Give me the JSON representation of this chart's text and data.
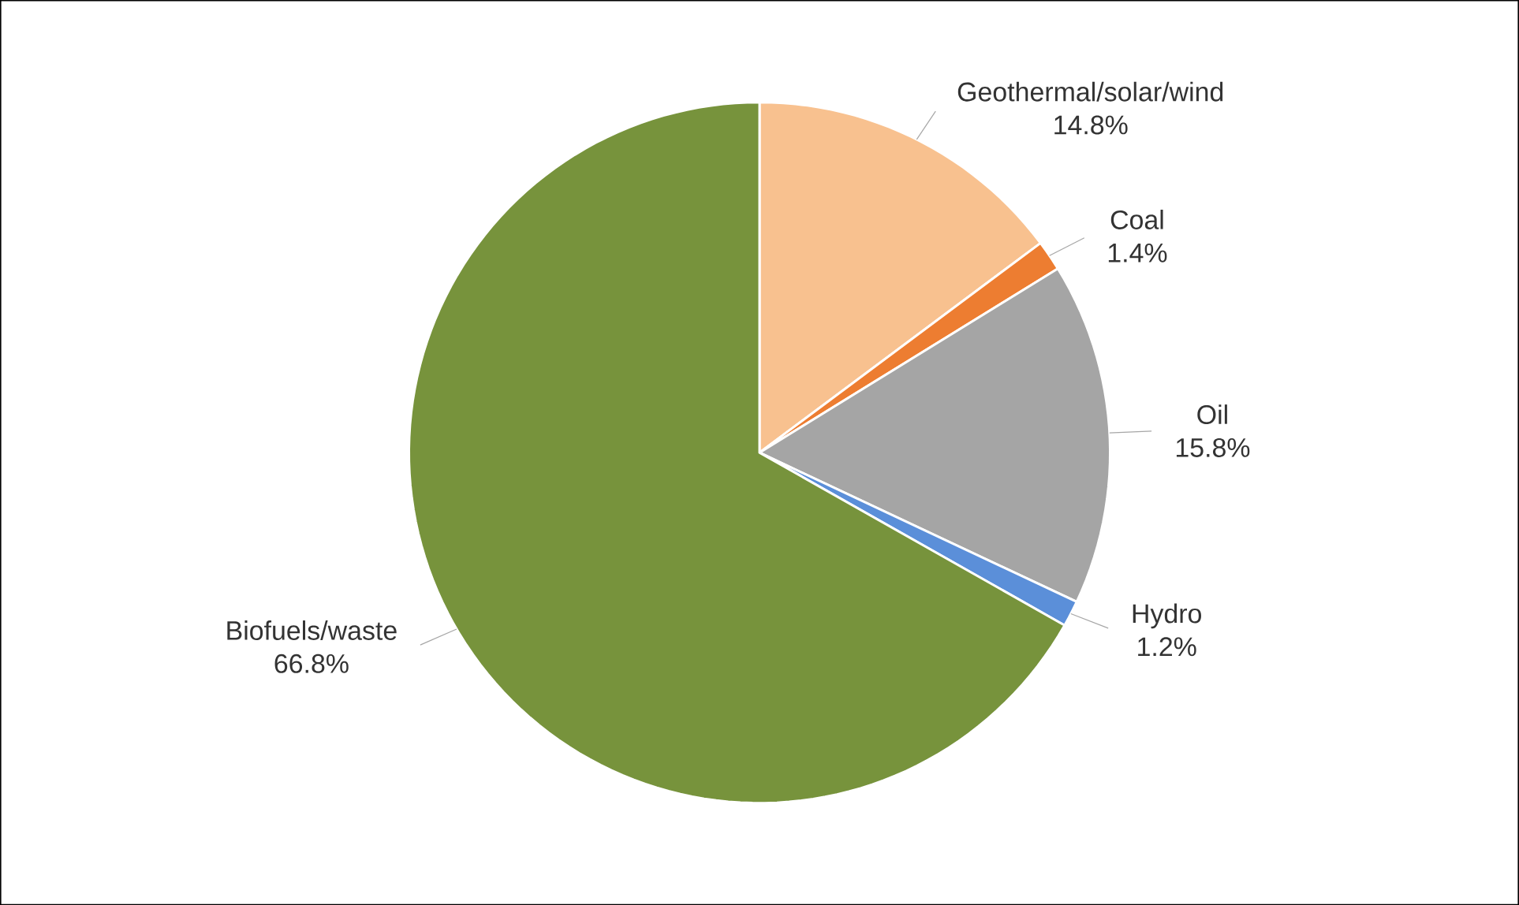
{
  "chart_data": {
    "type": "pie",
    "categories": [
      "Geothermal/solar/wind",
      "Coal",
      "Oil",
      "Hydro",
      "Biofuels/waste"
    ],
    "values": [
      14.8,
      1.4,
      15.8,
      1.2,
      66.8
    ],
    "colors": [
      "#f8c18f",
      "#ed7d31",
      "#a5a5a5",
      "#5b8fd9",
      "#77933c"
    ],
    "value_labels": [
      "14.8%",
      "1.4%",
      "15.8%",
      "1.2%",
      "66.8%"
    ]
  }
}
